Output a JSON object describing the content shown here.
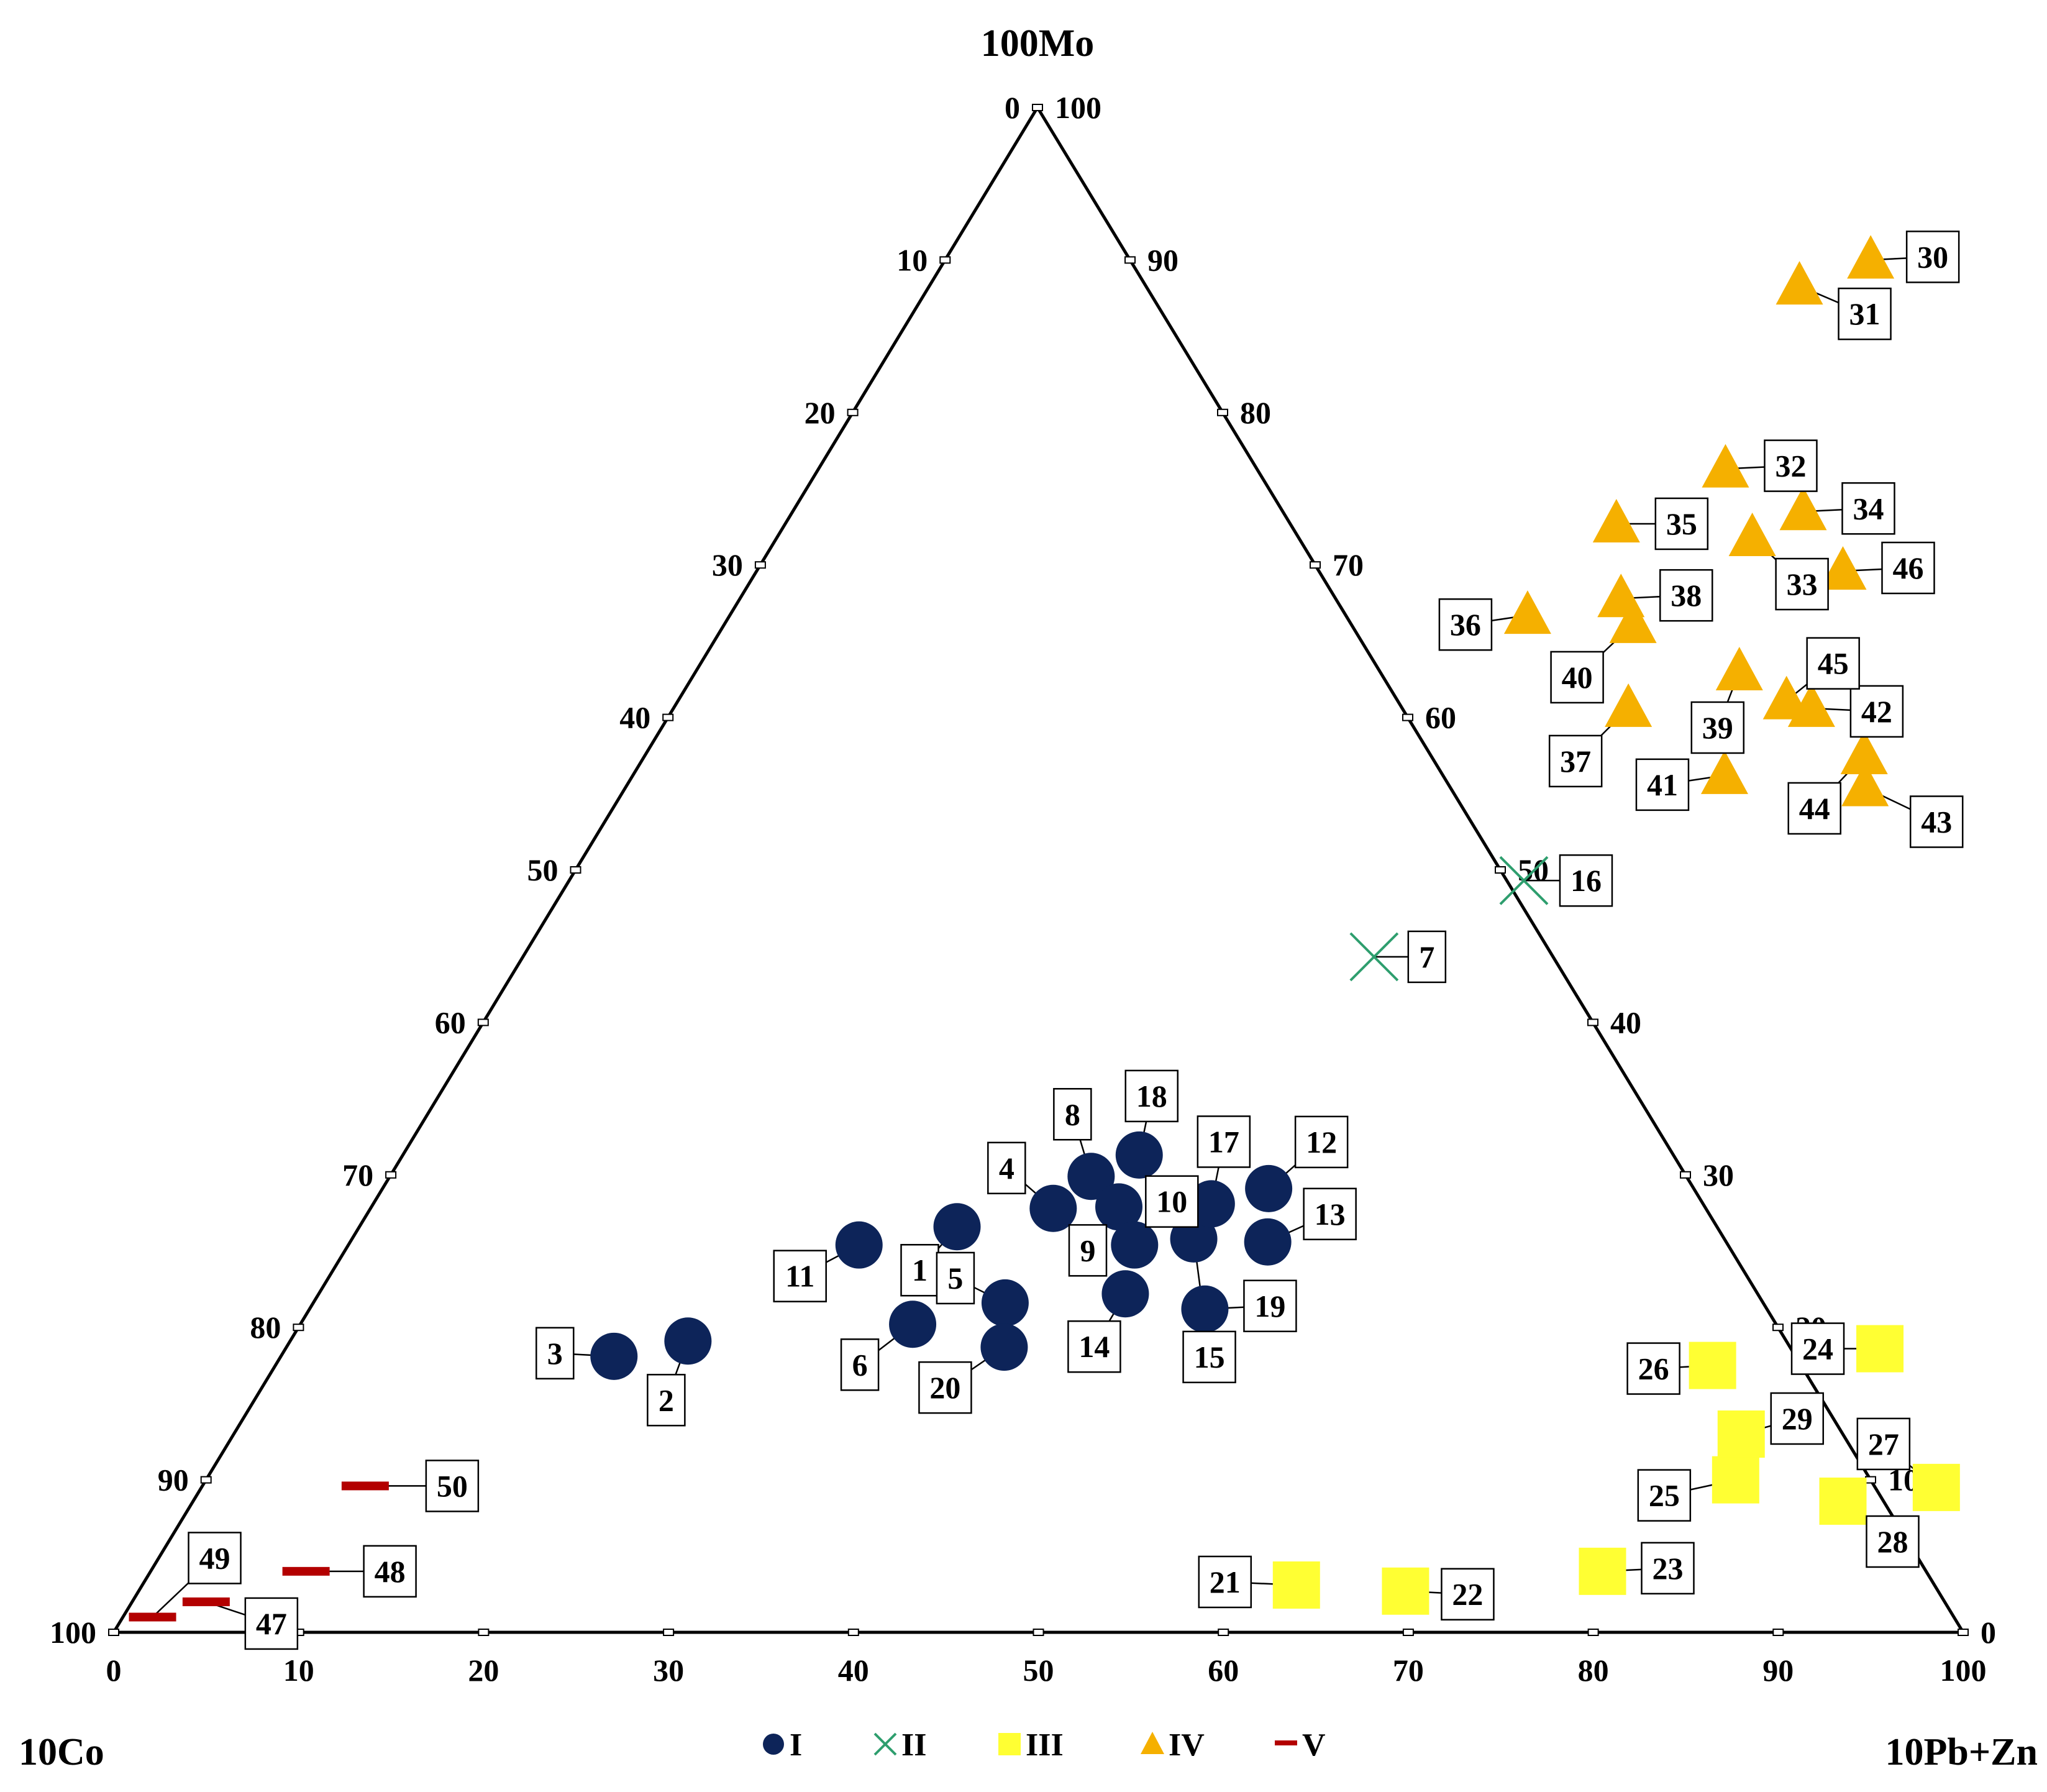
{
  "chart_data": {
    "type": "scatter",
    "subtype": "ternary",
    "corners": {
      "top": "100Mo",
      "left": "10Co",
      "right": "10Pb+Zn"
    },
    "bottom_axis_ticks": [
      "0",
      "10",
      "20",
      "30",
      "40",
      "50",
      "60",
      "70",
      "80",
      "90",
      "100"
    ],
    "left_axis_ticks": [
      "0",
      "10",
      "20",
      "30",
      "40",
      "50",
      "60",
      "70",
      "80",
      "90",
      "100"
    ],
    "right_axis_ticks": [
      "100",
      "90",
      "80",
      "70",
      "60",
      "50",
      "40",
      "30",
      "20",
      "10",
      "0"
    ],
    "colors": {
      "I": "#0d2459",
      "II": "#2e9e6e",
      "III": "#ffff33",
      "IV": "#f5b000",
      "V": "#b30000"
    },
    "legend": [
      {
        "key": "I",
        "label": "I",
        "marker": "circle"
      },
      {
        "key": "II",
        "label": "II",
        "marker": "cross"
      },
      {
        "key": "III",
        "label": "III",
        "marker": "square"
      },
      {
        "key": "IV",
        "label": "IV",
        "marker": "triangle"
      },
      {
        "key": "V",
        "label": "V",
        "marker": "dash"
      }
    ],
    "series": [
      {
        "name": "I",
        "points": [
          {
            "id": "1",
            "x": 32.3,
            "mo": 26.6
          },
          {
            "id": "2",
            "x": 21.5,
            "mo": 19.1
          },
          {
            "id": "3",
            "x": 18.0,
            "mo": 18.1
          },
          {
            "id": "4",
            "x": 36.9,
            "mo": 27.8
          },
          {
            "id": "5",
            "x": 37.4,
            "mo": 21.6
          },
          {
            "id": "6",
            "x": 33.1,
            "mo": 20.2
          },
          {
            "id": "8",
            "x": 37.9,
            "mo": 29.9
          },
          {
            "id": "9",
            "x": 40.4,
            "mo": 27.9
          },
          {
            "id": "10",
            "x": 42.5,
            "mo": 25.4
          },
          {
            "id": "11",
            "x": 27.6,
            "mo": 25.4
          },
          {
            "id": "12",
            "x": 47.9,
            "mo": 29.1
          },
          {
            "id": "13",
            "x": 49.6,
            "mo": 25.6
          },
          {
            "id": "14",
            "x": 43.6,
            "mo": 22.2
          },
          {
            "id": "15",
            "x": 45.5,
            "mo": 25.8
          },
          {
            "id": "17",
            "x": 45.3,
            "mo": 28.1
          },
          {
            "id": "18",
            "x": 39.8,
            "mo": 31.3
          },
          {
            "id": "19",
            "x": 48.4,
            "mo": 21.2
          },
          {
            "id": "20",
            "x": 38.8,
            "mo": 18.7
          }
        ]
      },
      {
        "name": "II",
        "points": [
          {
            "id": "7",
            "x": 46.0,
            "mo": 44.3
          },
          {
            "id": "16",
            "x": 51.6,
            "mo": 49.3
          }
        ]
      },
      {
        "name": "III",
        "points": [
          {
            "id": "21",
            "x": 62.4,
            "mo": 3.1
          },
          {
            "id": "22",
            "x": 68.5,
            "mo": 2.7
          },
          {
            "id": "23",
            "x": 78.5,
            "mo": 4.0
          },
          {
            "id": "24",
            "x": 86.2,
            "mo": 18.6
          },
          {
            "id": "25",
            "x": 82.7,
            "mo": 10.0
          },
          {
            "id": "26",
            "x": 77.7,
            "mo": 17.5
          },
          {
            "id": "27",
            "x": 93.8,
            "mo": 9.5
          },
          {
            "id": "28",
            "x": 89.2,
            "mo": 8.6
          },
          {
            "id": "29",
            "x": 81.5,
            "mo": 13.0
          }
        ]
      },
      {
        "name": "IV",
        "points": [
          {
            "id": "30",
            "x": 50.0,
            "mo": 90.0
          },
          {
            "id": "31",
            "x": 47.0,
            "mo": 88.3
          },
          {
            "id": "32",
            "x": 49.0,
            "mo": 76.3
          },
          {
            "id": "33",
            "x": 52.7,
            "mo": 71.8
          },
          {
            "id": "34",
            "x": 54.6,
            "mo": 73.5
          },
          {
            "id": "35",
            "x": 44.9,
            "mo": 72.7
          },
          {
            "id": "36",
            "x": 43.1,
            "mo": 66.7
          },
          {
            "id": "37",
            "x": 51.6,
            "mo": 60.6
          },
          {
            "id": "38",
            "x": 47.6,
            "mo": 67.8
          },
          {
            "id": "39",
            "x": 56.4,
            "mo": 63.0
          },
          {
            "id": "40",
            "x": 49.1,
            "mo": 66.1
          },
          {
            "id": "41",
            "x": 59.0,
            "mo": 56.2
          },
          {
            "id": "42",
            "x": 61.5,
            "mo": 60.6
          },
          {
            "id": "43",
            "x": 67.0,
            "mo": 55.4
          },
          {
            "id": "44",
            "x": 65.9,
            "mo": 57.5
          },
          {
            "id": "45",
            "x": 59.9,
            "mo": 61.1
          },
          {
            "id": "46",
            "x": 58.7,
            "mo": 69.6
          }
        ]
      },
      {
        "name": "V",
        "points": [
          {
            "id": "47",
            "x": 4.0,
            "mo": 2.0
          },
          {
            "id": "48",
            "x": 8.4,
            "mo": 4.0
          },
          {
            "id": "49",
            "x": 1.6,
            "mo": 1.0
          },
          {
            "id": "50",
            "x": 8.8,
            "mo": 9.6
          }
        ]
      }
    ],
    "labels": [
      {
        "id": "1",
        "dx": -60,
        "dy": 70
      },
      {
        "id": "2",
        "dx": -35,
        "dy": 95
      },
      {
        "id": "3",
        "dx": -95,
        "dy": -5
      },
      {
        "id": "4",
        "dx": -75,
        "dy": -65
      },
      {
        "id": "5",
        "dx": -80,
        "dy": -40
      },
      {
        "id": "6",
        "dx": -85,
        "dy": 65
      },
      {
        "id": "7",
        "dx": 85,
        "dy": 0
      },
      {
        "id": "8",
        "dx": -30,
        "dy": -100
      },
      {
        "id": "9",
        "dx": -50,
        "dy": 70
      },
      {
        "id": "10",
        "dx": 60,
        "dy": -70
      },
      {
        "id": "11",
        "dx": -95,
        "dy": 50
      },
      {
        "id": "12",
        "dx": 85,
        "dy": -75
      },
      {
        "id": "13",
        "dx": 100,
        "dy": -45
      },
      {
        "id": "14",
        "dx": -50,
        "dy": 85
      },
      {
        "id": "15",
        "dx": 25,
        "dy": 190
      },
      {
        "id": "16",
        "dx": 100,
        "dy": 0
      },
      {
        "id": "17",
        "dx": 20,
        "dy": -100
      },
      {
        "id": "18",
        "dx": 20,
        "dy": -95
      },
      {
        "id": "19",
        "dx": 105,
        "dy": -5
      },
      {
        "id": "20",
        "dx": -95,
        "dy": 65
      },
      {
        "id": "21",
        "dx": -115,
        "dy": -5
      },
      {
        "id": "22",
        "dx": 100,
        "dy": 5
      },
      {
        "id": "23",
        "dx": 105,
        "dy": -5
      },
      {
        "id": "24",
        "dx": -100,
        "dy": 0
      },
      {
        "id": "25",
        "dx": -115,
        "dy": 25
      },
      {
        "id": "26",
        "dx": -95,
        "dy": 5
      },
      {
        "id": "27",
        "dx": -85,
        "dy": -70
      },
      {
        "id": "28",
        "dx": 80,
        "dy": 65
      },
      {
        "id": "29",
        "dx": 90,
        "dy": -25
      },
      {
        "id": "30",
        "dx": 100,
        "dy": -5
      },
      {
        "id": "31",
        "dx": 105,
        "dy": 45
      },
      {
        "id": "32",
        "dx": 105,
        "dy": -5
      },
      {
        "id": "33",
        "dx": 80,
        "dy": 75
      },
      {
        "id": "34",
        "dx": 105,
        "dy": -5
      },
      {
        "id": "35",
        "dx": 105,
        "dy": 0
      },
      {
        "id": "36",
        "dx": -100,
        "dy": 15
      },
      {
        "id": "37",
        "dx": -85,
        "dy": 85
      },
      {
        "id": "38",
        "dx": 105,
        "dy": -5
      },
      {
        "id": "39",
        "dx": -35,
        "dy": 90
      },
      {
        "id": "40",
        "dx": -90,
        "dy": 85
      },
      {
        "id": "41",
        "dx": -100,
        "dy": 15
      },
      {
        "id": "42",
        "dx": 105,
        "dy": 5
      },
      {
        "id": "43",
        "dx": 115,
        "dy": 55
      },
      {
        "id": "44",
        "dx": -80,
        "dy": 85
      },
      {
        "id": "45",
        "dx": 75,
        "dy": -60
      },
      {
        "id": "46",
        "dx": 105,
        "dy": -5
      },
      {
        "id": "47",
        "dx": 105,
        "dy": 35
      },
      {
        "id": "48",
        "dx": 135,
        "dy": 0
      },
      {
        "id": "49",
        "dx": 100,
        "dy": -95
      },
      {
        "id": "50",
        "dx": 140,
        "dy": 0
      }
    ]
  }
}
